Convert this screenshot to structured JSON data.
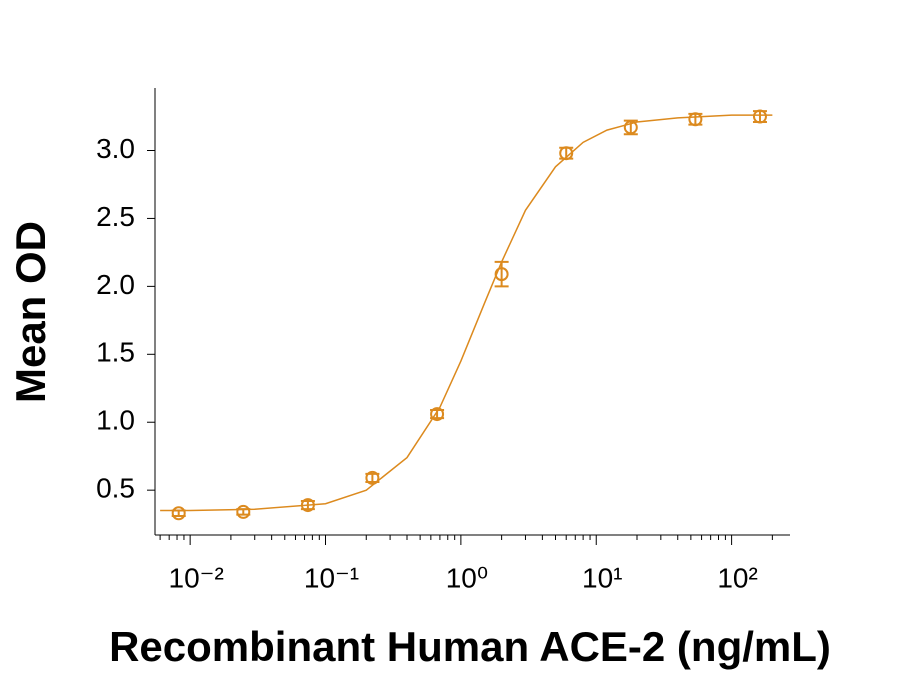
{
  "chart_data": {
    "type": "scatter",
    "xlabel": "Recombinant Human ACE-2 (ng/mL)",
    "ylabel": "Mean OD",
    "x": [
      0.00823,
      0.0247,
      0.0741,
      0.222,
      0.667,
      2,
      6,
      18,
      54,
      162
    ],
    "series": [
      {
        "color": "#dc8a1e",
        "values": [
          0.33,
          0.34,
          0.39,
          0.59,
          1.06,
          2.09,
          2.98,
          3.17,
          3.23,
          3.25
        ],
        "errors": [
          0.02,
          0.02,
          0.03,
          0.03,
          0.03,
          0.09,
          0.04,
          0.05,
          0.04,
          0.04
        ]
      }
    ],
    "curve": {
      "color": "#dc8a1e",
      "x": [
        0.006,
        0.01,
        0.03,
        0.1,
        0.2,
        0.4,
        0.7,
        1,
        1.5,
        2,
        3,
        5,
        8,
        12,
        20,
        40,
        100,
        200
      ],
      "values": [
        0.35,
        0.35,
        0.36,
        0.4,
        0.5,
        0.74,
        1.11,
        1.45,
        1.88,
        2.18,
        2.56,
        2.88,
        3.06,
        3.15,
        3.21,
        3.24,
        3.26,
        3.26
      ]
    },
    "xlog": true,
    "xlim": [
      0.0055,
      270
    ],
    "ylim": [
      0.17,
      3.46
    ],
    "xticks": [
      {
        "value": 0.01,
        "label": "10⁻²"
      },
      {
        "value": 0.1,
        "label": "10⁻¹"
      },
      {
        "value": 1,
        "label": "10⁰"
      },
      {
        "value": 10,
        "label": "10¹"
      },
      {
        "value": 100,
        "label": "10²"
      }
    ],
    "xminorticks": [
      0.006,
      0.007,
      0.008,
      0.009,
      0.02,
      0.03,
      0.04,
      0.05,
      0.06,
      0.07,
      0.08,
      0.09,
      0.2,
      0.3,
      0.4,
      0.5,
      0.6,
      0.7,
      0.8,
      0.9,
      2,
      3,
      4,
      5,
      6,
      7,
      8,
      9,
      20,
      30,
      40,
      50,
      60,
      70,
      80,
      90,
      200
    ],
    "yticks": [
      0.5,
      {
        "value": 1,
        "label": "1.0"
      },
      1.5,
      {
        "value": 2,
        "label": "2.0"
      },
      2.5,
      {
        "value": 3,
        "label": "3.0"
      }
    ]
  }
}
